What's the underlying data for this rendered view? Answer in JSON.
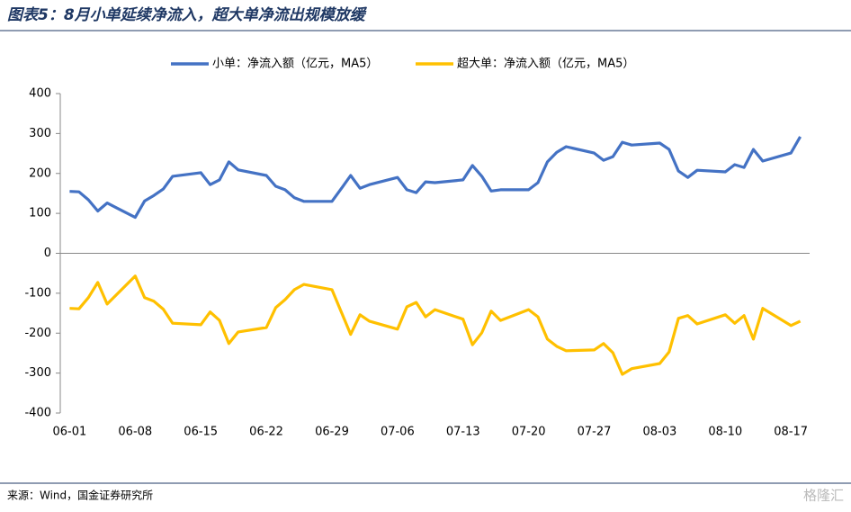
{
  "chart_data": {
    "type": "line",
    "title": "图表5：8月小单延续净流入，超大单净流出规模放缓",
    "source": "来源：Wind，国金证券研究所",
    "watermark": "格隆汇",
    "x": [
      "06-01",
      "06-02",
      "06-03",
      "06-04",
      "06-05",
      "06-08",
      "06-09",
      "06-10",
      "06-11",
      "06-12",
      "06-15",
      "06-16",
      "06-17",
      "06-18",
      "06-19",
      "06-22",
      "06-23",
      "06-24",
      "06-25",
      "06-26",
      "06-29",
      "06-30",
      "07-01",
      "07-02",
      "07-03",
      "07-06",
      "07-07",
      "07-08",
      "07-09",
      "07-10",
      "07-13",
      "07-14",
      "07-15",
      "07-16",
      "07-17",
      "07-20",
      "07-21",
      "07-22",
      "07-23",
      "07-24",
      "07-27",
      "07-28",
      "07-29",
      "07-30",
      "07-31",
      "08-03",
      "08-04",
      "08-05",
      "08-06",
      "08-07",
      "08-10",
      "08-11",
      "08-12",
      "08-13",
      "08-14",
      "08-17",
      "08-18"
    ],
    "xlim": [
      "05-31",
      "08-19"
    ],
    "xticks": [
      "06-01",
      "06-08",
      "06-15",
      "06-22",
      "06-29",
      "07-06",
      "07-13",
      "07-20",
      "07-27",
      "08-03",
      "08-10",
      "08-17"
    ],
    "ylim": [
      -400,
      400
    ],
    "yticks": [
      -400,
      -300,
      -200,
      -100,
      0,
      100,
      200,
      300,
      400
    ],
    "grid": false,
    "legend": "top",
    "series": [
      {
        "name": "小单：净流入额（亿元，MA5）",
        "color": "#4472c4",
        "values": [
          155,
          154,
          134,
          106,
          126,
          90,
          131,
          145,
          161,
          193,
          202,
          172,
          184,
          229,
          209,
          195,
          168,
          159,
          139,
          130,
          130,
          162,
          195,
          163,
          172,
          190,
          159,
          152,
          179,
          177,
          184,
          220,
          193,
          156,
          159,
          159,
          177,
          229,
          253,
          267,
          251,
          233,
          242,
          278,
          271,
          276,
          260,
          206,
          190,
          208,
          204,
          222,
          215,
          260,
          231,
          251,
          292
        ]
      },
      {
        "name": "超大单：净流入额（亿元，MA5）",
        "color": "#ffc000",
        "values": [
          -138,
          -139,
          -111,
          -73,
          -127,
          -57,
          -111,
          -120,
          -140,
          -175,
          -179,
          -147,
          -168,
          -226,
          -197,
          -186,
          -136,
          -116,
          -91,
          -78,
          -91,
          -147,
          -203,
          -154,
          -170,
          -190,
          -134,
          -123,
          -159,
          -141,
          -165,
          -229,
          -199,
          -145,
          -168,
          -141,
          -159,
          -215,
          -233,
          -244,
          -242,
          -226,
          -249,
          -303,
          -289,
          -276,
          -247,
          -163,
          -156,
          -177,
          -154,
          -175,
          -156,
          -215,
          -138,
          -181,
          -170
        ]
      }
    ]
  }
}
